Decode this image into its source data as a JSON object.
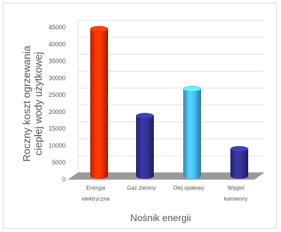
{
  "chart_data": {
    "type": "bar",
    "categories": [
      [
        "Energia",
        "elektryczna"
      ],
      [
        "Gaz ziemny"
      ],
      [
        "Olej opałowy"
      ],
      [
        "Węgiel",
        "kamienny"
      ]
    ],
    "values": [
      43500,
      17800,
      25800,
      8000
    ],
    "bar_colors": [
      "#ff3300",
      "#33339a",
      "#4cc3ff",
      "#33339a"
    ],
    "xlabel": "Nośnik energii",
    "ylabel": [
      "Roczny koszt ogrzewania",
      "ciepłej wody użytkowej"
    ],
    "ylim": [
      0,
      45000
    ],
    "yticks": [
      0,
      5000,
      10000,
      15000,
      20000,
      25000,
      30000,
      35000,
      40000,
      45000
    ],
    "grid": true,
    "legend": "none"
  }
}
